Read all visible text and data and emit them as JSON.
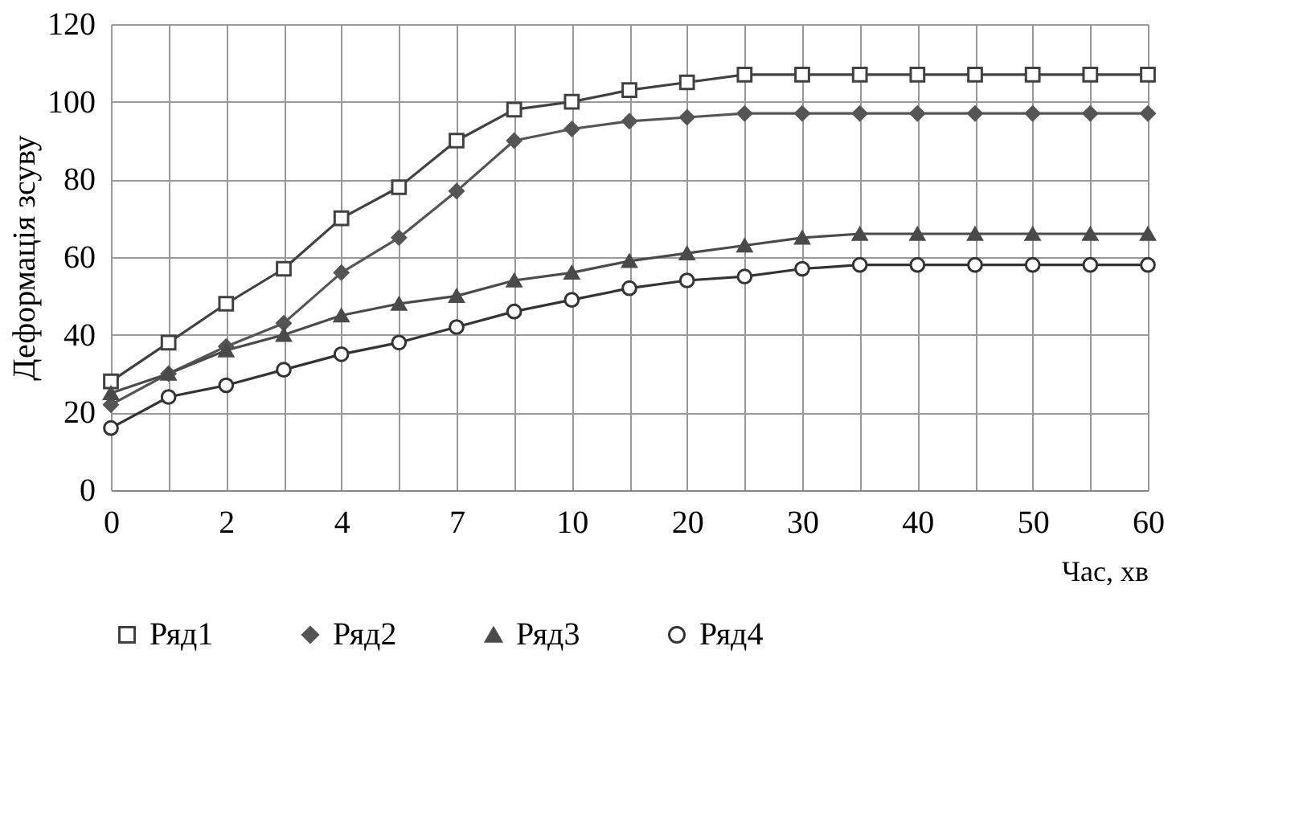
{
  "chart_data": {
    "type": "line",
    "xlabel": "Час, хв",
    "ylabel": "Деформація зсуву",
    "categories": [
      "0",
      null,
      "2",
      null,
      "4",
      null,
      "7",
      null,
      "10",
      null,
      "20",
      null,
      "30",
      null,
      "40",
      null,
      "50",
      null,
      "60"
    ],
    "ylim": [
      0,
      120
    ],
    "yticks": [
      0,
      20,
      40,
      60,
      80,
      100,
      120
    ],
    "grid": true,
    "legend": "bottom",
    "series": [
      {
        "name": "Ряд1",
        "color": "#404040",
        "marker": "square",
        "values": [
          28,
          38,
          48,
          57,
          70,
          78,
          90,
          98,
          100,
          103,
          105,
          107,
          107,
          107,
          107,
          107,
          107,
          107,
          107
        ]
      },
      {
        "name": "Ряд2",
        "color": "#555555",
        "marker": "diamond",
        "values": [
          22,
          30,
          37,
          43,
          56,
          65,
          77,
          90,
          93,
          95,
          96,
          97,
          97,
          97,
          97,
          97,
          97,
          97,
          97
        ]
      },
      {
        "name": "Ряд3",
        "color": "#4a4a4a",
        "marker": "triangle",
        "values": [
          25,
          30,
          36,
          40,
          45,
          48,
          50,
          54,
          56,
          59,
          61,
          63,
          65,
          66,
          66,
          66,
          66,
          66,
          66
        ]
      },
      {
        "name": "Ряд4",
        "color": "#333333",
        "marker": "circle",
        "values": [
          16,
          24,
          27,
          31,
          35,
          38,
          42,
          46,
          49,
          52,
          54,
          55,
          57,
          58,
          58,
          58,
          58,
          58,
          58
        ]
      }
    ]
  }
}
